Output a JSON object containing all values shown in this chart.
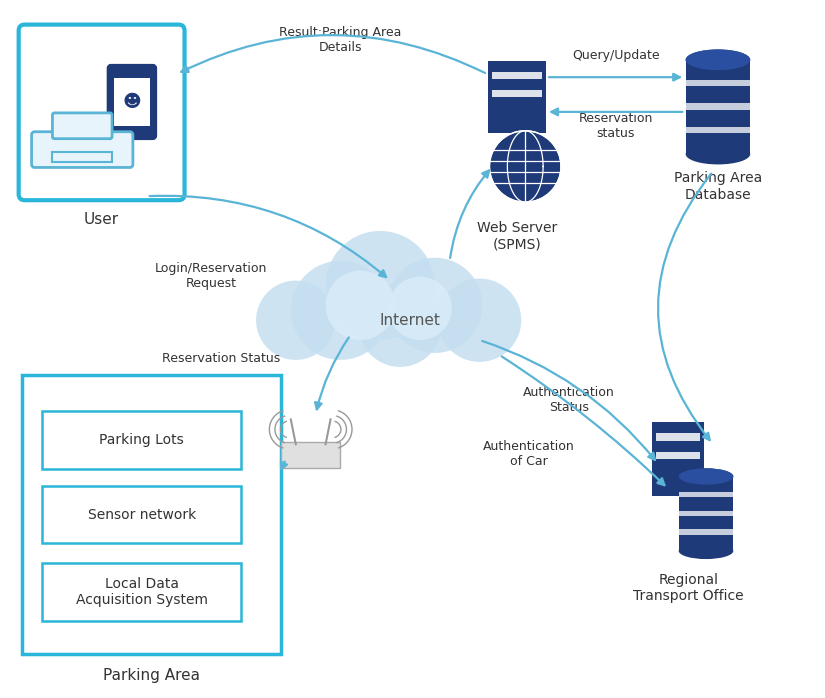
{
  "bg_color": "#ffffff",
  "dark_blue": "#1e3a78",
  "light_blue": "#5ab4d6",
  "cyan_border": "#29b6d8",
  "arrow_color": "#5ab4d6",
  "text_color": "#333333",
  "figsize": [
    8.25,
    6.98
  ],
  "dpi": 100,
  "parking_lots": [
    "Parking Lots",
    "Sensor network",
    "Local Data\nAcquisition System"
  ],
  "cloud_color": "#c5dff0",
  "cloud_color2": "#d8ecf8"
}
